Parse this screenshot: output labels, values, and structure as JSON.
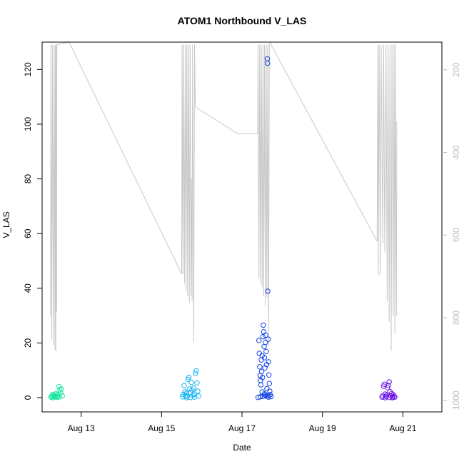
{
  "chart_data": {
    "type": "scatter",
    "title": "ATOM1 Northbound V_LAS",
    "xlabel": "Date",
    "ylabel": "V_LAS",
    "x_ticks": [
      "Aug 13",
      "Aug 15",
      "Aug 17",
      "Aug 19",
      "Aug 21"
    ],
    "x_tick_days": [
      13,
      15,
      17,
      19,
      21
    ],
    "xlim": [
      12.03,
      21.97
    ],
    "ylim": [
      -5.2,
      130
    ],
    "y_ticks": [
      0,
      20,
      40,
      60,
      80,
      100,
      120
    ],
    "y2_ticks": [
      200,
      400,
      600,
      800,
      1000
    ],
    "y2lim": [
      1028,
      133
    ],
    "grid": false,
    "colors": {
      "overlay_line": "#c8c8c8",
      "right_axis": "#bdbdbd",
      "session_aug12": "#19e6a2",
      "session_aug15": "#19b4f0",
      "session_aug17": "#1441e6",
      "session_aug20": "#6a14e6"
    },
    "series": [
      {
        "color": "#19e6a2",
        "points": [
          [
            12.25,
            0.2
          ],
          [
            12.27,
            0.5
          ],
          [
            12.29,
            1.2
          ],
          [
            12.31,
            0.8
          ],
          [
            12.33,
            0.3
          ],
          [
            12.35,
            0.6
          ],
          [
            12.37,
            1.4
          ],
          [
            12.39,
            0.9
          ],
          [
            12.41,
            0.4
          ],
          [
            12.43,
            1.1
          ],
          [
            12.45,
            4.1
          ],
          [
            12.47,
            2.9
          ],
          [
            12.49,
            1.8
          ],
          [
            12.51,
            3.2
          ],
          [
            12.53,
            0.7
          ],
          [
            12.3,
            0.0
          ],
          [
            12.4,
            0.1
          ],
          [
            12.46,
            0.3
          ]
        ]
      },
      {
        "color": "#19b4f0",
        "points": [
          [
            15.52,
            0.3
          ],
          [
            15.54,
            1.2
          ],
          [
            15.56,
            4.4
          ],
          [
            15.58,
            2.1
          ],
          [
            15.6,
            0.8
          ],
          [
            15.62,
            1.6
          ],
          [
            15.64,
            0.4
          ],
          [
            15.66,
            6.7
          ],
          [
            15.68,
            7.4
          ],
          [
            15.7,
            3.2
          ],
          [
            15.72,
            1.9
          ],
          [
            15.74,
            5.6
          ],
          [
            15.76,
            2.8
          ],
          [
            15.78,
            0.9
          ],
          [
            15.8,
            3.5
          ],
          [
            15.82,
            1.3
          ],
          [
            15.84,
            8.9
          ],
          [
            15.86,
            9.8
          ],
          [
            15.88,
            5.4
          ],
          [
            15.9,
            2.4
          ],
          [
            15.92,
            0.6
          ],
          [
            15.62,
            0.0
          ],
          [
            15.72,
            0.1
          ],
          [
            15.82,
            0.2
          ]
        ]
      },
      {
        "color": "#1441e6",
        "points": [
          [
            17.4,
            0.1
          ],
          [
            17.42,
            20.9
          ],
          [
            17.43,
            16.2
          ],
          [
            17.44,
            11.3
          ],
          [
            17.45,
            8.1
          ],
          [
            17.46,
            6.3
          ],
          [
            17.47,
            4.7
          ],
          [
            17.48,
            13.8
          ],
          [
            17.49,
            9.6
          ],
          [
            17.5,
            15.4
          ],
          [
            17.51,
            7.4
          ],
          [
            17.52,
            22.3
          ],
          [
            17.53,
            26.5
          ],
          [
            17.54,
            24.1
          ],
          [
            17.55,
            18.7
          ],
          [
            17.56,
            14.6
          ],
          [
            17.57,
            10.9
          ],
          [
            17.58,
            20.2
          ],
          [
            17.59,
            22.8
          ],
          [
            17.6,
            16.9
          ],
          [
            17.61,
            12.1
          ],
          [
            17.62,
            3.3
          ],
          [
            17.63,
            123.9
          ],
          [
            17.635,
            122.3
          ],
          [
            17.64,
            38.9
          ],
          [
            17.65,
            21.4
          ],
          [
            17.66,
            13.1
          ],
          [
            17.67,
            8.3
          ],
          [
            17.68,
            5.2
          ],
          [
            17.69,
            2.4
          ],
          [
            17.7,
            1.1
          ],
          [
            17.72,
            0.4
          ],
          [
            17.5,
            2.1
          ],
          [
            17.56,
            1.4
          ],
          [
            17.6,
            0.6
          ],
          [
            17.66,
            0.2
          ],
          [
            17.45,
            0.3
          ],
          [
            17.52,
            0.5
          ],
          [
            17.58,
            0.9
          ],
          [
            17.64,
            0.7
          ]
        ]
      },
      {
        "color": "#6a14e6",
        "points": [
          [
            20.48,
            0.2
          ],
          [
            20.5,
            0.6
          ],
          [
            20.52,
            4.2
          ],
          [
            20.54,
            4.9
          ],
          [
            20.56,
            1.3
          ],
          [
            20.58,
            0.4
          ],
          [
            20.6,
            0.9
          ],
          [
            20.62,
            3.6
          ],
          [
            20.64,
            4.4
          ],
          [
            20.66,
            5.8
          ],
          [
            20.68,
            2.2
          ],
          [
            20.7,
            0.7
          ],
          [
            20.72,
            1.5
          ],
          [
            20.74,
            0.3
          ],
          [
            20.76,
            1.1
          ],
          [
            20.78,
            0.5
          ],
          [
            20.8,
            0.2
          ],
          [
            20.56,
            0.0
          ],
          [
            20.66,
            0.1
          ],
          [
            20.74,
            0.0
          ]
        ]
      }
    ],
    "overlay_line_y2": [
      [
        12.24,
        795
      ],
      [
        12.25,
        139
      ],
      [
        12.27,
        852
      ],
      [
        12.29,
        139
      ],
      [
        12.31,
        866
      ],
      [
        12.33,
        139
      ],
      [
        12.35,
        878
      ],
      [
        12.36,
        140
      ],
      [
        12.37,
        880
      ],
      [
        12.38,
        139
      ],
      [
        12.39,
        785
      ],
      [
        12.395,
        139
      ],
      [
        12.7,
        133
      ],
      [
        15.5,
        694
      ],
      [
        15.51,
        139
      ],
      [
        15.53,
        694
      ],
      [
        15.55,
        139
      ],
      [
        15.57,
        717
      ],
      [
        15.59,
        139
      ],
      [
        15.61,
        736
      ],
      [
        15.63,
        139
      ],
      [
        15.65,
        748
      ],
      [
        15.67,
        139
      ],
      [
        15.69,
        764
      ],
      [
        15.71,
        139
      ],
      [
        15.73,
        748
      ],
      [
        15.74,
        464
      ],
      [
        15.76,
        759
      ],
      [
        15.77,
        139
      ],
      [
        15.8,
        858
      ],
      [
        15.82,
        139
      ],
      [
        15.84,
        290
      ],
      [
        16.9,
        355
      ],
      [
        17.39,
        355
      ],
      [
        17.4,
        139
      ],
      [
        17.42,
        705
      ],
      [
        17.44,
        139
      ],
      [
        17.46,
        717
      ],
      [
        17.48,
        139
      ],
      [
        17.5,
        725
      ],
      [
        17.52,
        139
      ],
      [
        17.54,
        748
      ],
      [
        17.56,
        139
      ],
      [
        17.58,
        770
      ],
      [
        17.6,
        139
      ],
      [
        17.62,
        750
      ],
      [
        17.64,
        139
      ],
      [
        17.66,
        870
      ],
      [
        17.68,
        139
      ],
      [
        17.7,
        135
      ],
      [
        20.36,
        615
      ],
      [
        20.38,
        139
      ],
      [
        20.39,
        697
      ],
      [
        20.41,
        139
      ],
      [
        20.44,
        697
      ],
      [
        20.46,
        139
      ],
      [
        20.5,
        620
      ],
      [
        20.52,
        139
      ],
      [
        20.55,
        640
      ],
      [
        20.58,
        139
      ],
      [
        20.61,
        760
      ],
      [
        20.63,
        139
      ],
      [
        20.66,
        810
      ],
      [
        20.68,
        139
      ],
      [
        20.71,
        880
      ],
      [
        20.73,
        139
      ],
      [
        20.76,
        795
      ],
      [
        20.78,
        139
      ],
      [
        20.8,
        840
      ],
      [
        20.81,
        139
      ],
      [
        20.84,
        796
      ],
      [
        20.85,
        325
      ]
    ]
  }
}
